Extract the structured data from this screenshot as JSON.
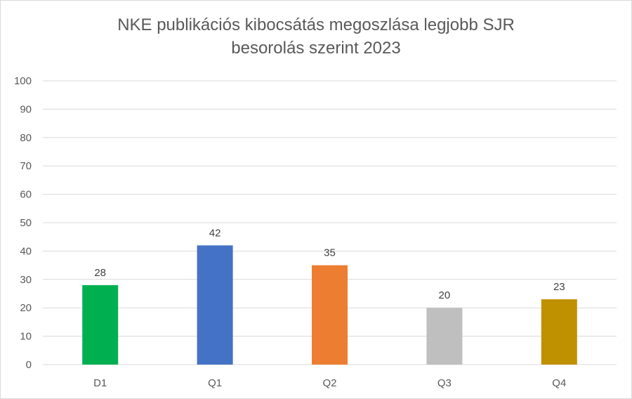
{
  "chart_data": {
    "type": "bar",
    "title_lines": [
      "NKE publikációs kibocsátás megoszlása legjobb SJR",
      "besorolás szerint 2023"
    ],
    "categories": [
      "D1",
      "Q1",
      "Q2",
      "Q3",
      "Q4"
    ],
    "values": [
      28,
      42,
      35,
      20,
      23
    ],
    "bar_colors": [
      "#00b050",
      "#4472c4",
      "#ed7d31",
      "#bfbfbf",
      "#bf9000"
    ],
    "ylim": [
      0,
      100
    ],
    "yticks": [
      0,
      10,
      20,
      30,
      40,
      50,
      60,
      70,
      80,
      90,
      100
    ],
    "grid": true,
    "legend": "none",
    "xlabel": "",
    "ylabel": ""
  },
  "colors": {
    "gridline": "#d9d9d9",
    "axis_text": "#595959",
    "title_text": "#595959"
  }
}
